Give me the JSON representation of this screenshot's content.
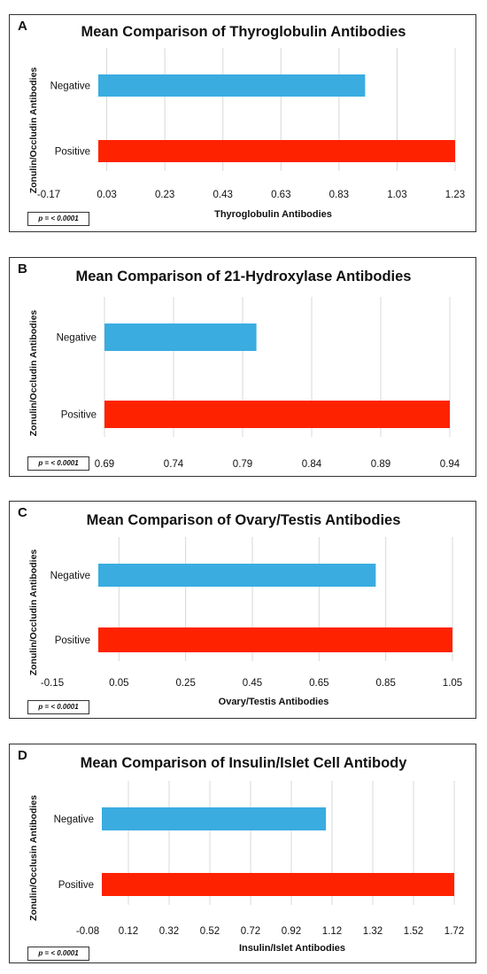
{
  "colors": {
    "negative": "#3aace0",
    "positive": "#ff2200",
    "grid": "#d8d8d8",
    "text": "#111111"
  },
  "chart_data": [
    {
      "type": "bar",
      "orientation": "horizontal",
      "panel_letter": "A",
      "title": "Mean Comparison of Thyroglobulin Antibodies",
      "xlabel": "Thyroglobulin Antibodies",
      "ylabel": "Zonulin/Occludin Antibodies",
      "categories": [
        "Negative",
        "Positive"
      ],
      "values": [
        0.92,
        1.23
      ],
      "xlim": [
        -0.17,
        1.23
      ],
      "xticks": [
        "-0.17",
        "0.03",
        "0.23",
        "0.43",
        "0.63",
        "0.83",
        "1.03",
        "1.23"
      ],
      "p_value": "p = < 0.0001",
      "grid": true
    },
    {
      "type": "bar",
      "orientation": "horizontal",
      "panel_letter": "B",
      "title": "Mean Comparison of 21-Hydroxylase Antibodies",
      "xlabel": "",
      "ylabel": "Zonulin/Occludin Antibodies",
      "categories": [
        "Negative",
        "Positive"
      ],
      "values": [
        0.8,
        0.94
      ],
      "xlim": [
        0.69,
        0.94
      ],
      "xticks": [
        "0.69",
        "0.74",
        "0.79",
        "0.84",
        "0.89",
        "0.94"
      ],
      "p_value": "p = < 0.0001",
      "grid": true
    },
    {
      "type": "bar",
      "orientation": "horizontal",
      "panel_letter": "C",
      "title": "Mean Comparison of Ovary/Testis Antibodies",
      "xlabel": "Ovary/Testis Antibodies",
      "ylabel": "Zonulin/Occludin Antibodies",
      "categories": [
        "Negative",
        "Positive"
      ],
      "values": [
        0.82,
        1.05
      ],
      "xlim": [
        -0.15,
        1.05
      ],
      "xticks": [
        "-0.15",
        "0.05",
        "0.25",
        "0.45",
        "0.65",
        "0.85",
        "1.05"
      ],
      "p_value": "p = < 0.0001",
      "grid": true
    },
    {
      "type": "bar",
      "orientation": "horizontal",
      "panel_letter": "D",
      "title": "Mean Comparison of Insulin/Islet Cell Antibody",
      "xlabel": "Insulin/Islet Antibodies",
      "ylabel": "Zonulin/Occlusin Antibodies",
      "categories": [
        "Negative",
        "Positive"
      ],
      "values": [
        1.09,
        1.72
      ],
      "xlim": [
        -0.08,
        1.72
      ],
      "xticks": [
        "-0.08",
        "0.12",
        "0.32",
        "0.52",
        "0.72",
        "0.92",
        "1.12",
        "1.32",
        "1.52",
        "1.72"
      ],
      "p_value": "p = < 0.0001",
      "grid": true
    }
  ]
}
